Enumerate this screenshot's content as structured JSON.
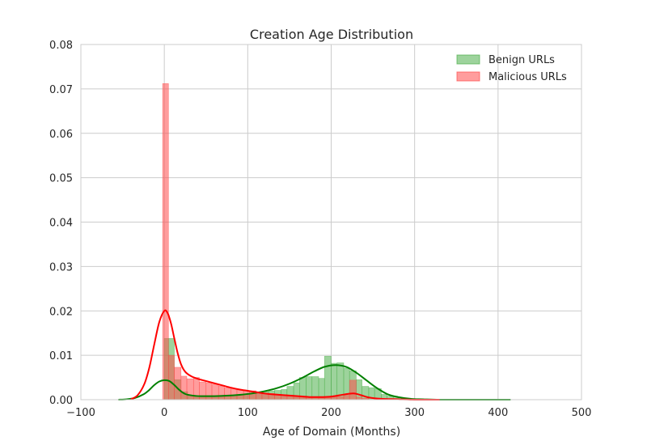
{
  "chart_data": {
    "type": "histogram-kde",
    "title": "Creation Age Distribution",
    "xlabel": "Age of Domain (Months)",
    "ylabel": "",
    "xlim": [
      -100,
      500
    ],
    "ylim": [
      0,
      0.08
    ],
    "xticks": [
      -100,
      0,
      100,
      200,
      300,
      400,
      500
    ],
    "xtick_labels": [
      "−100",
      "0",
      "100",
      "200",
      "300",
      "400",
      "500"
    ],
    "yticks": [
      0,
      0.01,
      0.02,
      0.03,
      0.04,
      0.05,
      0.06,
      0.07,
      0.08
    ],
    "ytick_labels": [
      "0.00",
      "0.01",
      "0.02",
      "0.03",
      "0.04",
      "0.05",
      "0.06",
      "0.07",
      "0.08"
    ],
    "grid": true,
    "legend_position": "top-right",
    "series": [
      {
        "name": "Benign URLs",
        "color": "#008000",
        "bar_color": "#4daf4a",
        "bins": [
          {
            "x0": 0,
            "x1": 5,
            "y": 0.0138
          },
          {
            "x0": 5,
            "x1": 12,
            "y": 0.0138
          },
          {
            "x0": 12,
            "x1": 20,
            "y": 0.0045
          },
          {
            "x0": 20,
            "x1": 28,
            "y": 0.0018
          },
          {
            "x0": 28,
            "x1": 35,
            "y": 0.001
          },
          {
            "x0": 35,
            "x1": 42,
            "y": 0.0008
          },
          {
            "x0": 42,
            "x1": 50,
            "y": 0.0007
          },
          {
            "x0": 50,
            "x1": 57,
            "y": 0.0007
          },
          {
            "x0": 57,
            "x1": 65,
            "y": 0.0007
          },
          {
            "x0": 65,
            "x1": 72,
            "y": 0.0008
          },
          {
            "x0": 72,
            "x1": 80,
            "y": 0.0008
          },
          {
            "x0": 80,
            "x1": 87,
            "y": 0.001
          },
          {
            "x0": 87,
            "x1": 95,
            "y": 0.0011
          },
          {
            "x0": 95,
            "x1": 102,
            "y": 0.0012
          },
          {
            "x0": 102,
            "x1": 110,
            "y": 0.0014
          },
          {
            "x0": 110,
            "x1": 117,
            "y": 0.0017
          },
          {
            "x0": 117,
            "x1": 125,
            "y": 0.0018
          },
          {
            "x0": 125,
            "x1": 132,
            "y": 0.002
          },
          {
            "x0": 132,
            "x1": 140,
            "y": 0.0021
          },
          {
            "x0": 140,
            "x1": 147,
            "y": 0.0023
          },
          {
            "x0": 147,
            "x1": 155,
            "y": 0.003
          },
          {
            "x0": 155,
            "x1": 162,
            "y": 0.0038
          },
          {
            "x0": 162,
            "x1": 170,
            "y": 0.005
          },
          {
            "x0": 170,
            "x1": 177,
            "y": 0.0052
          },
          {
            "x0": 177,
            "x1": 185,
            "y": 0.0052
          },
          {
            "x0": 185,
            "x1": 192,
            "y": 0.0048
          },
          {
            "x0": 192,
            "x1": 200,
            "y": 0.0098
          },
          {
            "x0": 200,
            "x1": 207,
            "y": 0.0082
          },
          {
            "x0": 207,
            "x1": 215,
            "y": 0.0083
          },
          {
            "x0": 215,
            "x1": 222,
            "y": 0.0071
          },
          {
            "x0": 222,
            "x1": 230,
            "y": 0.0065
          },
          {
            "x0": 230,
            "x1": 237,
            "y": 0.0045
          },
          {
            "x0": 237,
            "x1": 245,
            "y": 0.003
          },
          {
            "x0": 245,
            "x1": 252,
            "y": 0.0027
          },
          {
            "x0": 252,
            "x1": 260,
            "y": 0.0025
          },
          {
            "x0": 260,
            "x1": 267,
            "y": 0.0012
          },
          {
            "x0": 267,
            "x1": 275,
            "y": 0.0008
          },
          {
            "x0": 275,
            "x1": 282,
            "y": 0.0004
          },
          {
            "x0": 282,
            "x1": 290,
            "y": 0.0002
          }
        ],
        "kde": [
          [
            -55,
            0.0
          ],
          [
            -45,
            0.0001
          ],
          [
            -35,
            0.0004
          ],
          [
            -25,
            0.0012
          ],
          [
            -18,
            0.0022
          ],
          [
            -12,
            0.0033
          ],
          [
            -6,
            0.0041
          ],
          [
            0,
            0.0044
          ],
          [
            6,
            0.0042
          ],
          [
            12,
            0.0033
          ],
          [
            18,
            0.0022
          ],
          [
            25,
            0.0013
          ],
          [
            35,
            0.0009
          ],
          [
            45,
            0.0008
          ],
          [
            60,
            0.0008
          ],
          [
            75,
            0.0009
          ],
          [
            90,
            0.0011
          ],
          [
            105,
            0.0014
          ],
          [
            120,
            0.0019
          ],
          [
            135,
            0.0026
          ],
          [
            150,
            0.0036
          ],
          [
            165,
            0.0049
          ],
          [
            180,
            0.0064
          ],
          [
            192,
            0.0074
          ],
          [
            205,
            0.0078
          ],
          [
            218,
            0.0074
          ],
          [
            230,
            0.0061
          ],
          [
            242,
            0.0044
          ],
          [
            255,
            0.0026
          ],
          [
            268,
            0.0012
          ],
          [
            280,
            0.0006
          ],
          [
            295,
            0.0002
          ],
          [
            310,
            0.0001
          ],
          [
            330,
            0.0
          ],
          [
            360,
            0.0
          ],
          [
            390,
            0.0
          ],
          [
            415,
            0.0
          ]
        ]
      },
      {
        "name": "Malicious URLs",
        "color": "#ff0000",
        "bar_color": "#ff4d4d",
        "bins": [
          {
            "x0": -2,
            "x1": 5,
            "y": 0.0712
          },
          {
            "x0": 5,
            "x1": 12,
            "y": 0.01
          },
          {
            "x0": 12,
            "x1": 20,
            "y": 0.0073
          },
          {
            "x0": 20,
            "x1": 27,
            "y": 0.0053
          },
          {
            "x0": 27,
            "x1": 35,
            "y": 0.0047
          },
          {
            "x0": 35,
            "x1": 42,
            "y": 0.005
          },
          {
            "x0": 42,
            "x1": 50,
            "y": 0.004
          },
          {
            "x0": 50,
            "x1": 57,
            "y": 0.0038
          },
          {
            "x0": 57,
            "x1": 65,
            "y": 0.0035
          },
          {
            "x0": 65,
            "x1": 72,
            "y": 0.0031
          },
          {
            "x0": 72,
            "x1": 80,
            "y": 0.0027
          },
          {
            "x0": 80,
            "x1": 87,
            "y": 0.0025
          },
          {
            "x0": 87,
            "x1": 95,
            "y": 0.0022
          },
          {
            "x0": 95,
            "x1": 102,
            "y": 0.002
          },
          {
            "x0": 102,
            "x1": 110,
            "y": 0.002
          },
          {
            "x0": 110,
            "x1": 117,
            "y": 0.0018
          },
          {
            "x0": 117,
            "x1": 125,
            "y": 0.0015
          },
          {
            "x0": 125,
            "x1": 132,
            "y": 0.0014
          },
          {
            "x0": 132,
            "x1": 140,
            "y": 0.0012
          },
          {
            "x0": 140,
            "x1": 147,
            "y": 0.001
          },
          {
            "x0": 147,
            "x1": 155,
            "y": 0.001
          },
          {
            "x0": 155,
            "x1": 162,
            "y": 0.0008
          },
          {
            "x0": 162,
            "x1": 170,
            "y": 0.0008
          },
          {
            "x0": 170,
            "x1": 177,
            "y": 0.0006
          },
          {
            "x0": 177,
            "x1": 185,
            "y": 0.0005
          },
          {
            "x0": 185,
            "x1": 192,
            "y": 0.0004
          },
          {
            "x0": 192,
            "x1": 200,
            "y": 0.0005
          },
          {
            "x0": 200,
            "x1": 207,
            "y": 0.0006
          },
          {
            "x0": 207,
            "x1": 215,
            "y": 0.0007
          },
          {
            "x0": 215,
            "x1": 222,
            "y": 0.001
          },
          {
            "x0": 222,
            "x1": 230,
            "y": 0.0044
          },
          {
            "x0": 230,
            "x1": 237,
            "y": 0.0006
          },
          {
            "x0": 237,
            "x1": 245,
            "y": 0.0003
          }
        ],
        "kde": [
          [
            -40,
            0.0001
          ],
          [
            -32,
            0.001
          ],
          [
            -24,
            0.0035
          ],
          [
            -18,
            0.0072
          ],
          [
            -12,
            0.0125
          ],
          [
            -6,
            0.0175
          ],
          [
            0,
            0.02
          ],
          [
            4,
            0.0195
          ],
          [
            8,
            0.0172
          ],
          [
            12,
            0.0138
          ],
          [
            16,
            0.0105
          ],
          [
            20,
            0.008
          ],
          [
            25,
            0.0063
          ],
          [
            32,
            0.0053
          ],
          [
            40,
            0.0047
          ],
          [
            50,
            0.0042
          ],
          [
            60,
            0.0037
          ],
          [
            70,
            0.0032
          ],
          [
            80,
            0.0027
          ],
          [
            90,
            0.0023
          ],
          [
            100,
            0.002
          ],
          [
            110,
            0.0017
          ],
          [
            120,
            0.0014
          ],
          [
            130,
            0.0012
          ],
          [
            145,
            0.001
          ],
          [
            160,
            0.0008
          ],
          [
            175,
            0.0006
          ],
          [
            190,
            0.0006
          ],
          [
            200,
            0.0007
          ],
          [
            210,
            0.001
          ],
          [
            220,
            0.0013
          ],
          [
            228,
            0.0014
          ],
          [
            236,
            0.001
          ],
          [
            245,
            0.0005
          ],
          [
            260,
            0.0002
          ],
          [
            280,
            0.0001
          ],
          [
            300,
            0.0
          ],
          [
            330,
            0.0
          ]
        ]
      }
    ]
  }
}
